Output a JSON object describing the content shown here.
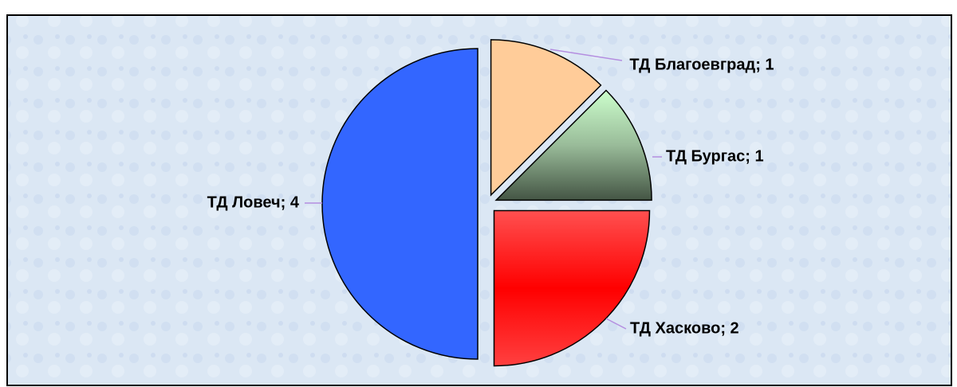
{
  "chart_data": {
    "type": "pie",
    "categories": [
      "ТД Благоевград",
      "ТД Бургас",
      "ТД Хасково",
      "ТД Ловеч"
    ],
    "values": [
      1,
      1,
      2,
      4
    ],
    "value_labels": [
      "ТД Благоевград; 1",
      "ТД Бургас; 1",
      "ТД Хасково; 2",
      "ТД Ловеч; 4"
    ],
    "colors": [
      "#ffcc99",
      "#ccffcc",
      "#ff2020",
      "#3366ff"
    ]
  }
}
